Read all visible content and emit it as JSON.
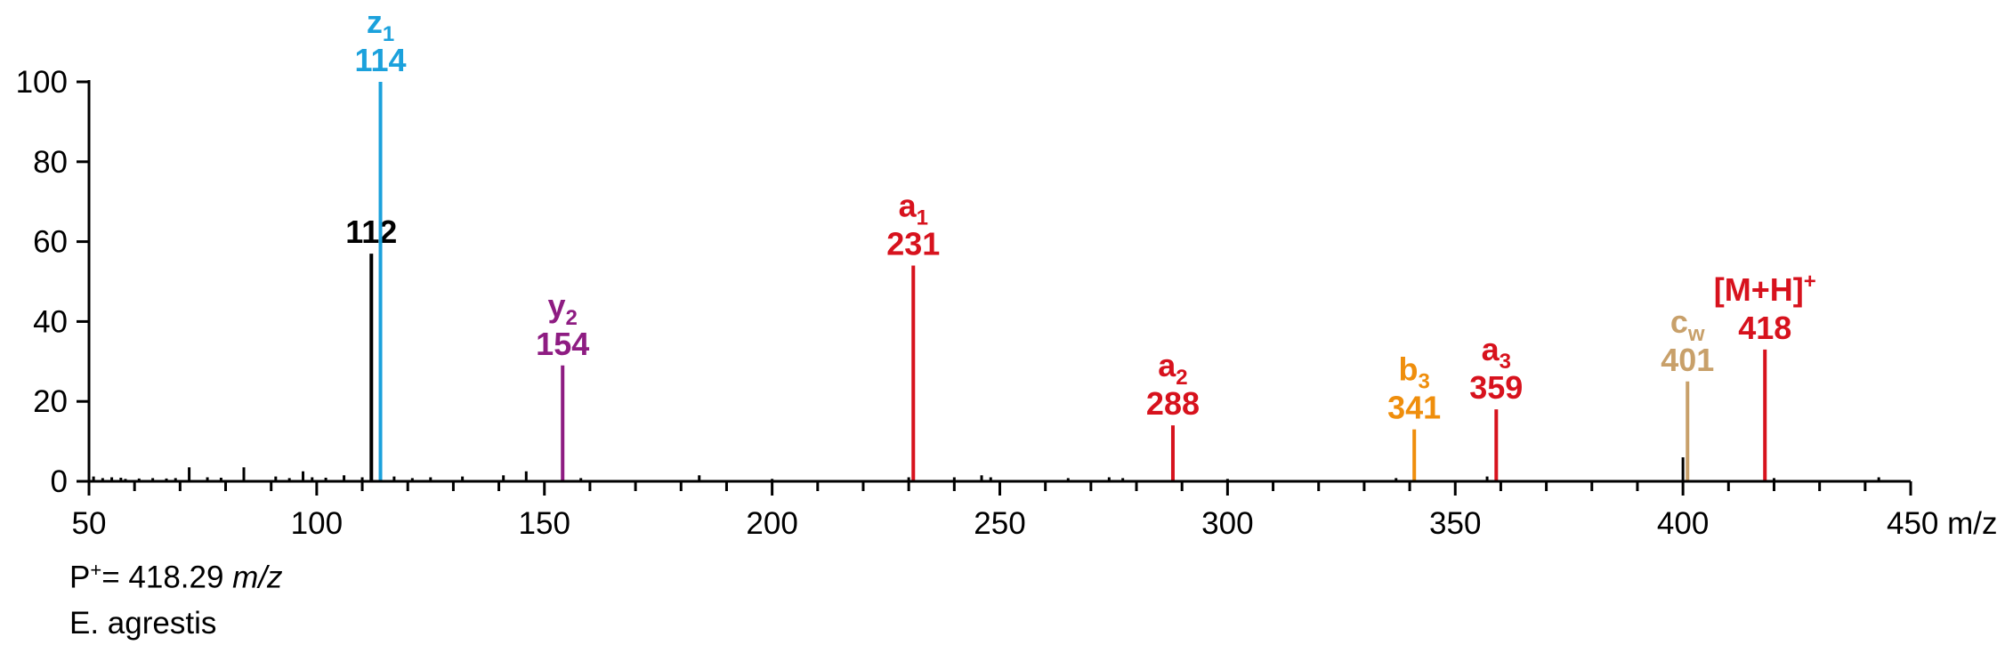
{
  "chart_data": {
    "type": "bar",
    "x_unit": "m/z",
    "xlim": [
      50,
      450
    ],
    "ylim": [
      0,
      100
    ],
    "x_ticks": [
      50,
      100,
      150,
      200,
      250,
      300,
      350,
      400,
      450
    ],
    "y_ticks": [
      0,
      20,
      40,
      60,
      80,
      100
    ],
    "x_tick_labels": [
      "50",
      "100",
      "150",
      "200",
      "250",
      "300",
      "350",
      "400",
      "450 m/z"
    ],
    "y_tick_labels": [
      "0",
      "20",
      "40",
      "60",
      "80",
      "100"
    ],
    "labeled_peaks": [
      {
        "mz": 112,
        "intensity": 57,
        "color": "#000000",
        "ion": null,
        "sub": null,
        "sup": null,
        "mass_label": "112"
      },
      {
        "mz": 114,
        "intensity": 100,
        "color": "#1ba1dc",
        "ion": "z",
        "sub": "1",
        "sup": null,
        "mass_label": "114"
      },
      {
        "mz": 154,
        "intensity": 29,
        "color": "#8e1c82",
        "ion": "y",
        "sub": "2",
        "sup": null,
        "mass_label": "154"
      },
      {
        "mz": 231,
        "intensity": 54,
        "color": "#d7121d",
        "ion": "a",
        "sub": "1",
        "sup": null,
        "mass_label": "231"
      },
      {
        "mz": 288,
        "intensity": 14,
        "color": "#d7121d",
        "ion": "a",
        "sub": "2",
        "sup": null,
        "mass_label": "288"
      },
      {
        "mz": 341,
        "intensity": 13,
        "color": "#ef8e0c",
        "ion": "b",
        "sub": "3",
        "sup": null,
        "mass_label": "341"
      },
      {
        "mz": 359,
        "intensity": 18,
        "color": "#d7121d",
        "ion": "a",
        "sub": "3",
        "sup": null,
        "mass_label": "359"
      },
      {
        "mz": 401,
        "intensity": 25,
        "color": "#c8a06a",
        "ion": "c",
        "sub": "w",
        "sup": null,
        "mass_label": "401"
      },
      {
        "mz": 418,
        "intensity": 33,
        "color": "#d7121d",
        "ion": "[M+H]",
        "sub": null,
        "sup": "+",
        "mass_label": "418"
      }
    ],
    "noise_peaks": [
      {
        "mz": 51,
        "intensity": 1.2
      },
      {
        "mz": 53,
        "intensity": 0.8
      },
      {
        "mz": 55,
        "intensity": 1.0
      },
      {
        "mz": 57,
        "intensity": 0.9
      },
      {
        "mz": 58,
        "intensity": 0.6
      },
      {
        "mz": 61,
        "intensity": 0.7
      },
      {
        "mz": 64,
        "intensity": 0.8
      },
      {
        "mz": 67,
        "intensity": 0.7
      },
      {
        "mz": 69,
        "intensity": 0.8
      },
      {
        "mz": 72,
        "intensity": 3.5
      },
      {
        "mz": 76,
        "intensity": 1.0
      },
      {
        "mz": 79,
        "intensity": 0.9
      },
      {
        "mz": 84,
        "intensity": 3.5
      },
      {
        "mz": 91,
        "intensity": 1.2
      },
      {
        "mz": 94,
        "intensity": 0.8
      },
      {
        "mz": 97,
        "intensity": 2.5
      },
      {
        "mz": 99,
        "intensity": 1.0
      },
      {
        "mz": 102,
        "intensity": 0.9
      },
      {
        "mz": 106,
        "intensity": 1.5
      },
      {
        "mz": 110,
        "intensity": 1.0
      },
      {
        "mz": 117,
        "intensity": 1.2
      },
      {
        "mz": 121,
        "intensity": 0.8
      },
      {
        "mz": 125,
        "intensity": 1.0
      },
      {
        "mz": 132,
        "intensity": 1.2
      },
      {
        "mz": 141,
        "intensity": 1.5
      },
      {
        "mz": 146,
        "intensity": 2.5
      },
      {
        "mz": 158,
        "intensity": 0.8
      },
      {
        "mz": 184,
        "intensity": 1.5
      },
      {
        "mz": 200,
        "intensity": 0.6
      },
      {
        "mz": 230,
        "intensity": 1.0
      },
      {
        "mz": 240,
        "intensity": 1.0
      },
      {
        "mz": 246,
        "intensity": 1.5
      },
      {
        "mz": 248,
        "intensity": 1.0
      },
      {
        "mz": 265,
        "intensity": 0.8
      },
      {
        "mz": 274,
        "intensity": 1.0
      },
      {
        "mz": 277,
        "intensity": 0.8
      },
      {
        "mz": 300,
        "intensity": 0.6
      },
      {
        "mz": 337,
        "intensity": 0.8
      },
      {
        "mz": 357,
        "intensity": 1.2
      },
      {
        "mz": 400,
        "intensity": 6.0
      },
      {
        "mz": 420,
        "intensity": 0.8
      },
      {
        "mz": 443,
        "intensity": 1.0
      }
    ]
  },
  "footer": {
    "precursor_prefix": "P",
    "precursor_sup": "+",
    "precursor_value": "= 418.29 ",
    "precursor_unit": "m/z",
    "species": "E. agrestis"
  }
}
